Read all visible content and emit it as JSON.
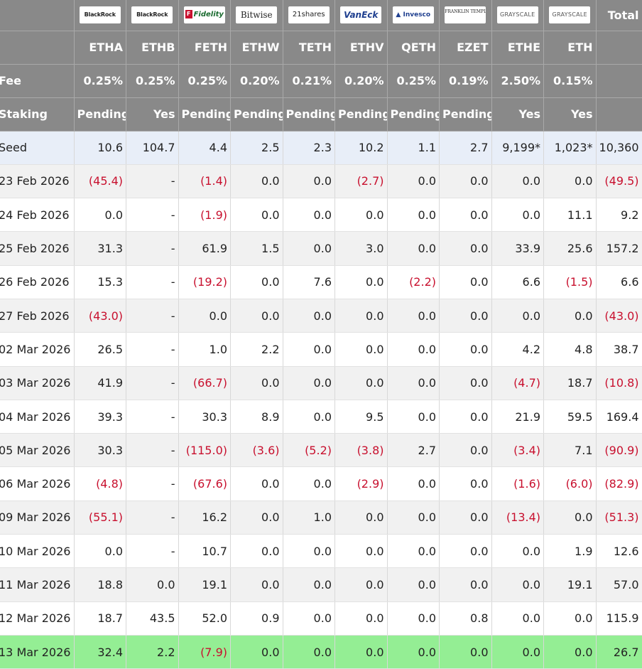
{
  "header": {
    "logos": [
      {
        "icon": "blackrock-logo",
        "text": "BlackRock"
      },
      {
        "icon": "blackrock-logo",
        "text": "BlackRock"
      },
      {
        "icon": "fidelity-logo",
        "text": "Fidelity"
      },
      {
        "icon": "bitwise-logo",
        "text": "Bitwise"
      },
      {
        "icon": "21shares-logo",
        "text": "21shares"
      },
      {
        "icon": "vaneck-logo",
        "text": "VanEck"
      },
      {
        "icon": "invesco-logo",
        "text": "Invesco"
      },
      {
        "icon": "franklin-templeton-logo",
        "text": "FRANKLIN TEMPLETON"
      },
      {
        "icon": "grayscale-logo",
        "text": "GRAYSCALE"
      },
      {
        "icon": "grayscale-logo",
        "text": "GRAYSCALE"
      }
    ],
    "total_label": "Total",
    "tickers": [
      "ETHA",
      "ETHB",
      "FETH",
      "ETHW",
      "TETH",
      "ETHV",
      "QETH",
      "EZET",
      "ETHE",
      "ETH"
    ],
    "fee_label": "Fee",
    "fees": [
      "0.25%",
      "0.25%",
      "0.25%",
      "0.20%",
      "0.21%",
      "0.20%",
      "0.25%",
      "0.19%",
      "2.50%",
      "0.15%"
    ],
    "staking_label": "Staking",
    "staking": [
      "Pending",
      "Yes",
      "Pending",
      "Pending",
      "Pending",
      "Pending",
      "Pending",
      "Pending",
      "Yes",
      "Yes"
    ]
  },
  "rows": [
    {
      "label": "Seed",
      "values": [
        "10.6",
        "104.7",
        "4.4",
        "2.5",
        "2.3",
        "10.2",
        "1.1",
        "2.7",
        "9,199*",
        "1,023*",
        "10,360"
      ]
    },
    {
      "label": "23 Feb 2026",
      "values": [
        "(45.4)",
        "-",
        "(1.4)",
        "0.0",
        "0.0",
        "(2.7)",
        "0.0",
        "0.0",
        "0.0",
        "0.0",
        "(49.5)"
      ]
    },
    {
      "label": "24 Feb 2026",
      "values": [
        "0.0",
        "-",
        "(1.9)",
        "0.0",
        "0.0",
        "0.0",
        "0.0",
        "0.0",
        "0.0",
        "11.1",
        "9.2"
      ]
    },
    {
      "label": "25 Feb 2026",
      "values": [
        "31.3",
        "-",
        "61.9",
        "1.5",
        "0.0",
        "3.0",
        "0.0",
        "0.0",
        "33.9",
        "25.6",
        "157.2"
      ]
    },
    {
      "label": "26 Feb 2026",
      "values": [
        "15.3",
        "-",
        "(19.2)",
        "0.0",
        "7.6",
        "0.0",
        "(2.2)",
        "0.0",
        "6.6",
        "(1.5)",
        "6.6"
      ]
    },
    {
      "label": "27 Feb 2026",
      "values": [
        "(43.0)",
        "-",
        "0.0",
        "0.0",
        "0.0",
        "0.0",
        "0.0",
        "0.0",
        "0.0",
        "0.0",
        "(43.0)"
      ]
    },
    {
      "label": "02 Mar 2026",
      "values": [
        "26.5",
        "-",
        "1.0",
        "2.2",
        "0.0",
        "0.0",
        "0.0",
        "0.0",
        "4.2",
        "4.8",
        "38.7"
      ]
    },
    {
      "label": "03 Mar 2026",
      "values": [
        "41.9",
        "-",
        "(66.7)",
        "0.0",
        "0.0",
        "0.0",
        "0.0",
        "0.0",
        "(4.7)",
        "18.7",
        "(10.8)"
      ]
    },
    {
      "label": "04 Mar 2026",
      "values": [
        "39.3",
        "-",
        "30.3",
        "8.9",
        "0.0",
        "9.5",
        "0.0",
        "0.0",
        "21.9",
        "59.5",
        "169.4"
      ]
    },
    {
      "label": "05 Mar 2026",
      "values": [
        "30.3",
        "-",
        "(115.0)",
        "(3.6)",
        "(5.2)",
        "(3.8)",
        "2.7",
        "0.0",
        "(3.4)",
        "7.1",
        "(90.9)"
      ]
    },
    {
      "label": "06 Mar 2026",
      "values": [
        "(4.8)",
        "-",
        "(67.6)",
        "0.0",
        "0.0",
        "(2.9)",
        "0.0",
        "0.0",
        "(1.6)",
        "(6.0)",
        "(82.9)"
      ]
    },
    {
      "label": "09 Mar 2026",
      "values": [
        "(55.1)",
        "-",
        "16.2",
        "0.0",
        "1.0",
        "0.0",
        "0.0",
        "0.0",
        "(13.4)",
        "0.0",
        "(51.3)"
      ]
    },
    {
      "label": "10 Mar 2026",
      "values": [
        "0.0",
        "-",
        "10.7",
        "0.0",
        "0.0",
        "0.0",
        "0.0",
        "0.0",
        "0.0",
        "1.9",
        "12.6"
      ]
    },
    {
      "label": "11 Mar 2026",
      "values": [
        "18.8",
        "0.0",
        "19.1",
        "0.0",
        "0.0",
        "0.0",
        "0.0",
        "0.0",
        "0.0",
        "19.1",
        "57.0"
      ]
    },
    {
      "label": "12 Mar 2026",
      "values": [
        "18.7",
        "43.5",
        "52.0",
        "0.9",
        "0.0",
        "0.0",
        "0.0",
        "0.8",
        "0.0",
        "0.0",
        "115.9"
      ]
    },
    {
      "label": "13 Mar 2026",
      "values": [
        "32.4",
        "2.2",
        "(7.9)",
        "0.0",
        "0.0",
        "0.0",
        "0.0",
        "0.0",
        "0.0",
        "0.0",
        "26.7"
      ]
    }
  ],
  "colors": {
    "header_bg": "#898989",
    "negative": "#c8102e",
    "seed_bg": "#e8eef8",
    "latest_bg": "#94ee94",
    "stripe_bg": "#f1f1f1"
  }
}
